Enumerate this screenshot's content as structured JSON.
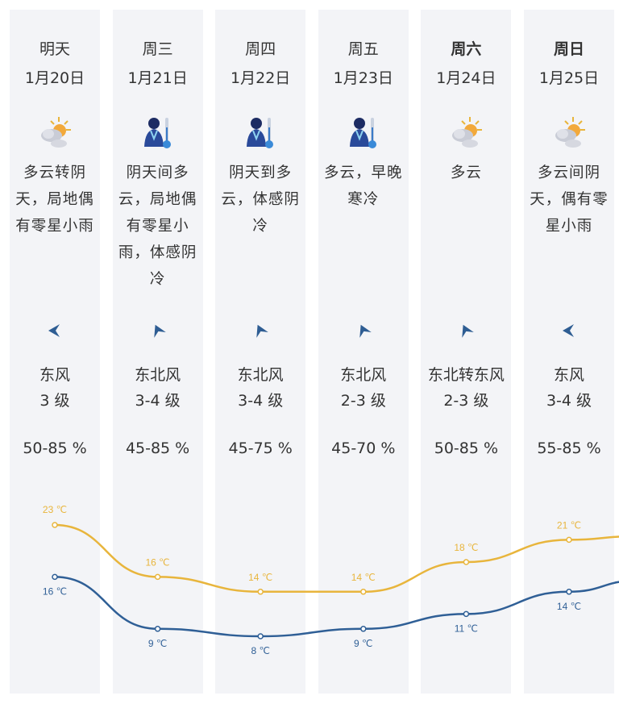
{
  "colors": {
    "high": "#e8b53c",
    "low": "#2f5f96",
    "column_bg": "#f3f4f7",
    "arrow": "#2e5d93"
  },
  "days": [
    {
      "day": "明天",
      "bold": false,
      "date": "1月20日",
      "icon": "partly-cloudy-icon",
      "desc": "多云转阴天，局地偶有零星小雨",
      "wind_icon": "wind-arrow-east-icon",
      "wind_dir": "东风",
      "wind_level": "3 级",
      "humidity": "50-85 %",
      "high": "23 ℃",
      "low": "16 ℃"
    },
    {
      "day": "周三",
      "bold": false,
      "date": "1月21日",
      "icon": "cold-person-thermometer-icon",
      "desc": "阴天间多云，局地偶有零星小雨，体感阴冷",
      "wind_icon": "wind-arrow-northeast-icon",
      "wind_dir": "东北风",
      "wind_level": "3-4 级",
      "humidity": "45-85 %",
      "high": "16 ℃",
      "low": "9 ℃"
    },
    {
      "day": "周四",
      "bold": false,
      "date": "1月22日",
      "icon": "cold-person-thermometer-icon",
      "desc": "阴天到多云，体感阴冷",
      "wind_icon": "wind-arrow-northeast-icon",
      "wind_dir": "东北风",
      "wind_level": "3-4 级",
      "humidity": "45-75 %",
      "high": "14 ℃",
      "low": "8 ℃"
    },
    {
      "day": "周五",
      "bold": false,
      "date": "1月23日",
      "icon": "cold-person-thermometer-icon",
      "desc": "多云，早晚寒冷",
      "wind_icon": "wind-arrow-northeast-icon",
      "wind_dir": "东北风",
      "wind_level": "2-3 级",
      "humidity": "45-70 %",
      "high": "14 ℃",
      "low": "9 ℃"
    },
    {
      "day": "周六",
      "bold": true,
      "date": "1月24日",
      "icon": "partly-cloudy-icon",
      "desc": "多云",
      "wind_icon": "wind-arrow-northeast-icon",
      "wind_dir": "东北转东风",
      "wind_level": "2-3 级",
      "humidity": "50-85 %",
      "high": "18 ℃",
      "low": "11 ℃"
    },
    {
      "day": "周日",
      "bold": true,
      "date": "1月25日",
      "icon": "partly-cloudy-icon",
      "desc": "多云间阴天，偶有零星小雨",
      "wind_icon": "wind-arrow-east-icon",
      "wind_dir": "东风",
      "wind_level": "3-4 级",
      "humidity": "55-85 %",
      "high": "21 ℃",
      "low": "14 ℃"
    }
  ],
  "chart_data": {
    "type": "line",
    "categories": [
      "1月20日",
      "1月21日",
      "1月22日",
      "1月23日",
      "1月24日",
      "1月25日"
    ],
    "series": [
      {
        "name": "high",
        "values": [
          23,
          16,
          14,
          14,
          18,
          21
        ],
        "continues_to": 21.5
      },
      {
        "name": "low",
        "values": [
          16,
          9,
          8,
          9,
          11,
          14
        ],
        "continues_to": 15.5
      }
    ],
    "unit": "℃"
  }
}
